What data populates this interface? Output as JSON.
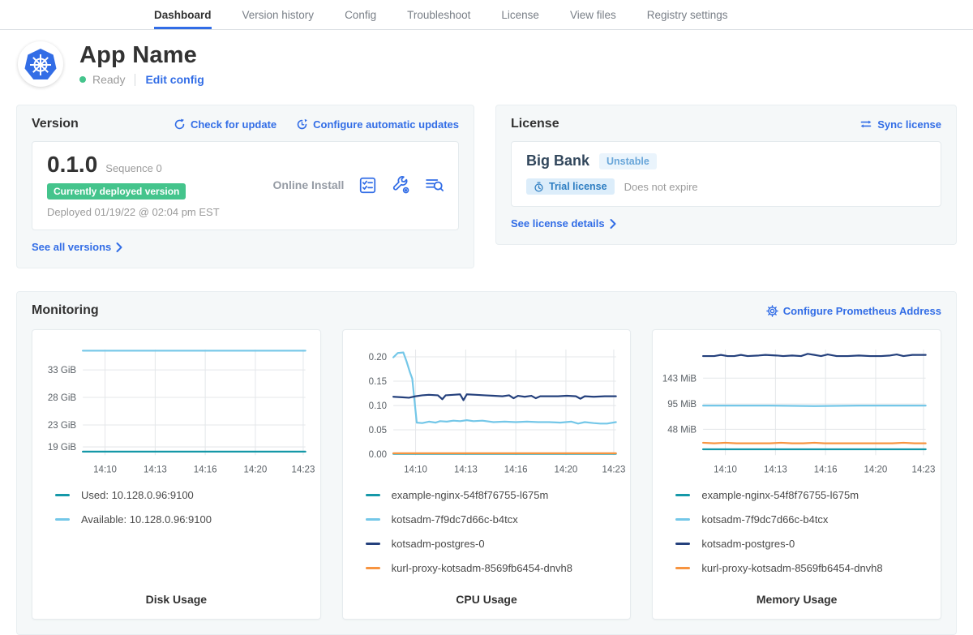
{
  "nav": {
    "tabs": [
      {
        "label": "Dashboard",
        "active": true
      },
      {
        "label": "Version history",
        "active": false
      },
      {
        "label": "Config",
        "active": false
      },
      {
        "label": "Troubleshoot",
        "active": false
      },
      {
        "label": "License",
        "active": false
      },
      {
        "label": "View files",
        "active": false
      },
      {
        "label": "Registry settings",
        "active": false
      }
    ]
  },
  "header": {
    "app_name": "App Name",
    "status": "Ready",
    "edit_config": "Edit config"
  },
  "version": {
    "title": "Version",
    "check_for_update": "Check for update",
    "configure_auto_updates": "Configure automatic updates",
    "number": "0.1.0",
    "sequence": "Sequence 0",
    "deployed_badge": "Currently deployed version",
    "deployed_text": "Deployed 01/19/22 @ 02:04 pm EST",
    "install_type": "Online Install",
    "see_all": "See all versions"
  },
  "license": {
    "title": "License",
    "sync": "Sync license",
    "name": "Big Bank",
    "channel": "Unstable",
    "type_badge": "Trial license",
    "expiry": "Does not expire",
    "details": "See license details"
  },
  "monitoring": {
    "title": "Monitoring",
    "configure": "Configure Prometheus Address"
  },
  "icons": {
    "version_actions": [
      "preflight-checks-icon",
      "config-wrench-icon",
      "view-logs-icon"
    ],
    "header_links": [
      "refresh-icon",
      "clock-arrow-icon",
      "sync-arrows-icon",
      "gear-icon"
    ]
  },
  "colors": {
    "accent_blue": "#326de6",
    "green": "#44c48c",
    "teal": "#1598a8",
    "light_blue": "#74c7e8",
    "navy": "#24407c",
    "orange": "#f79440"
  },
  "chart_data": [
    {
      "type": "line",
      "title": "Disk Usage",
      "xlabel": "",
      "ylabel": "",
      "ylim": [
        17.5,
        36.7
      ],
      "grid": true,
      "legend_position": "below",
      "y_ticks": [
        {
          "value": 33,
          "label": "33 GiB"
        },
        {
          "value": 28,
          "label": "28 GiB"
        },
        {
          "value": 23,
          "label": "23 GiB"
        },
        {
          "value": 19,
          "label": "19 GiB"
        }
      ],
      "x_ticks": [
        {
          "pos": 0.1,
          "label": "14:10"
        },
        {
          "pos": 0.325,
          "label": "14:13"
        },
        {
          "pos": 0.55,
          "label": "14:16"
        },
        {
          "pos": 0.775,
          "label": "14:20"
        },
        {
          "pos": 0.99,
          "label": "14:23"
        }
      ],
      "series": [
        {
          "name": "Used: 10.128.0.96:9100",
          "color": "#1598a8",
          "points": [
            [
              0,
              18.15
            ],
            [
              1,
              18.15
            ]
          ]
        },
        {
          "name": "Available: 10.128.0.96:9100",
          "color": "#74c7e8",
          "points": [
            [
              0,
              36.5
            ],
            [
              1,
              36.5
            ]
          ]
        }
      ]
    },
    {
      "type": "line",
      "title": "CPU Usage",
      "xlabel": "",
      "ylabel": "",
      "ylim": [
        -0.002,
        0.215
      ],
      "grid": true,
      "legend_position": "below",
      "y_ticks": [
        {
          "value": 0.2,
          "label": "0.20"
        },
        {
          "value": 0.15,
          "label": "0.15"
        },
        {
          "value": 0.1,
          "label": "0.10"
        },
        {
          "value": 0.05,
          "label": "0.05"
        },
        {
          "value": 0.0,
          "label": "0.00"
        }
      ],
      "x_ticks": [
        {
          "pos": 0.1,
          "label": "14:10"
        },
        {
          "pos": 0.325,
          "label": "14:13"
        },
        {
          "pos": 0.55,
          "label": "14:16"
        },
        {
          "pos": 0.775,
          "label": "14:20"
        },
        {
          "pos": 0.99,
          "label": "14:23"
        }
      ],
      "series": [
        {
          "name": "example-nginx-54f8f76755-l675m",
          "color": "#1598a8",
          "points": [
            [
              0,
              0.001
            ],
            [
              1,
              0.001
            ]
          ]
        },
        {
          "name": "kotsadm-7f9dc7d66c-b4tcx",
          "color": "#74c7e8",
          "points": [
            [
              0,
              0.199
            ],
            [
              0.02,
              0.208
            ],
            [
              0.045,
              0.209
            ],
            [
              0.06,
              0.19
            ],
            [
              0.075,
              0.168
            ],
            [
              0.085,
              0.155
            ],
            [
              0.105,
              0.065
            ],
            [
              0.13,
              0.064
            ],
            [
              0.16,
              0.067
            ],
            [
              0.19,
              0.065
            ],
            [
              0.21,
              0.068
            ],
            [
              0.24,
              0.067
            ],
            [
              0.27,
              0.069
            ],
            [
              0.3,
              0.068
            ],
            [
              0.33,
              0.07
            ],
            [
              0.36,
              0.068
            ],
            [
              0.4,
              0.069
            ],
            [
              0.45,
              0.066
            ],
            [
              0.5,
              0.067
            ],
            [
              0.55,
              0.066
            ],
            [
              0.6,
              0.067
            ],
            [
              0.65,
              0.066
            ],
            [
              0.7,
              0.066
            ],
            [
              0.75,
              0.065
            ],
            [
              0.8,
              0.067
            ],
            [
              0.83,
              0.063
            ],
            [
              0.86,
              0.066
            ],
            [
              0.9,
              0.064
            ],
            [
              0.93,
              0.063
            ],
            [
              0.96,
              0.063
            ],
            [
              1,
              0.066
            ]
          ]
        },
        {
          "name": "kotsadm-postgres-0",
          "color": "#24407c",
          "points": [
            [
              0,
              0.118
            ],
            [
              0.04,
              0.117
            ],
            [
              0.07,
              0.116
            ],
            [
              0.1,
              0.119
            ],
            [
              0.13,
              0.121
            ],
            [
              0.16,
              0.122
            ],
            [
              0.2,
              0.121
            ],
            [
              0.22,
              0.113
            ],
            [
              0.235,
              0.121
            ],
            [
              0.27,
              0.122
            ],
            [
              0.3,
              0.123
            ],
            [
              0.315,
              0.111
            ],
            [
              0.33,
              0.123
            ],
            [
              0.37,
              0.122
            ],
            [
              0.41,
              0.121
            ],
            [
              0.45,
              0.12
            ],
            [
              0.49,
              0.119
            ],
            [
              0.52,
              0.121
            ],
            [
              0.54,
              0.115
            ],
            [
              0.56,
              0.12
            ],
            [
              0.59,
              0.118
            ],
            [
              0.62,
              0.12
            ],
            [
              0.64,
              0.115
            ],
            [
              0.66,
              0.119
            ],
            [
              0.7,
              0.119
            ],
            [
              0.74,
              0.119
            ],
            [
              0.78,
              0.12
            ],
            [
              0.82,
              0.119
            ],
            [
              0.84,
              0.114
            ],
            [
              0.86,
              0.119
            ],
            [
              0.9,
              0.118
            ],
            [
              0.95,
              0.119
            ],
            [
              1,
              0.119
            ]
          ]
        },
        {
          "name": "kurl-proxy-kotsadm-8569fb6454-dnvh8",
          "color": "#f79440",
          "points": [
            [
              0,
              0.002
            ],
            [
              1,
              0.002
            ]
          ]
        }
      ]
    },
    {
      "type": "line",
      "title": "Memory Usage",
      "xlabel": "",
      "ylabel": "",
      "ylim": [
        0,
        196
      ],
      "grid": true,
      "legend_position": "below",
      "y_ticks": [
        {
          "value": 143,
          "label": "143 MiB"
        },
        {
          "value": 95,
          "label": "95 MiB"
        },
        {
          "value": 48,
          "label": "48 MiB"
        }
      ],
      "x_ticks": [
        {
          "pos": 0.1,
          "label": "14:10"
        },
        {
          "pos": 0.325,
          "label": "14:13"
        },
        {
          "pos": 0.55,
          "label": "14:16"
        },
        {
          "pos": 0.775,
          "label": "14:20"
        },
        {
          "pos": 0.99,
          "label": "14:23"
        }
      ],
      "series": [
        {
          "name": "example-nginx-54f8f76755-l675m",
          "color": "#1598a8",
          "points": [
            [
              0,
              11
            ],
            [
              1,
              11
            ]
          ]
        },
        {
          "name": "kotsadm-7f9dc7d66c-b4tcx",
          "color": "#74c7e8",
          "points": [
            [
              0,
              92
            ],
            [
              0.3,
              92
            ],
            [
              0.5,
              91
            ],
            [
              0.7,
              92
            ],
            [
              1,
              92
            ]
          ]
        },
        {
          "name": "kotsadm-postgres-0",
          "color": "#24407c",
          "points": [
            [
              0,
              184
            ],
            [
              0.05,
              184
            ],
            [
              0.08,
              186
            ],
            [
              0.11,
              184
            ],
            [
              0.14,
              184
            ],
            [
              0.17,
              186
            ],
            [
              0.2,
              184
            ],
            [
              0.25,
              185
            ],
            [
              0.28,
              186
            ],
            [
              0.33,
              185
            ],
            [
              0.36,
              184
            ],
            [
              0.4,
              185
            ],
            [
              0.44,
              184
            ],
            [
              0.47,
              188
            ],
            [
              0.5,
              186
            ],
            [
              0.53,
              184
            ],
            [
              0.56,
              187
            ],
            [
              0.6,
              184
            ],
            [
              0.65,
              184
            ],
            [
              0.7,
              185
            ],
            [
              0.75,
              184
            ],
            [
              0.8,
              184
            ],
            [
              0.84,
              185
            ],
            [
              0.87,
              187
            ],
            [
              0.9,
              184
            ],
            [
              0.94,
              186
            ],
            [
              1,
              186
            ]
          ]
        },
        {
          "name": "kurl-proxy-kotsadm-8569fb6454-dnvh8",
          "color": "#f79440",
          "points": [
            [
              0,
              23
            ],
            [
              0.05,
              22
            ],
            [
              0.1,
              23
            ],
            [
              0.15,
              22
            ],
            [
              0.2,
              22
            ],
            [
              0.25,
              22
            ],
            [
              0.3,
              22
            ],
            [
              0.35,
              23
            ],
            [
              0.4,
              22
            ],
            [
              0.45,
              22
            ],
            [
              0.5,
              23
            ],
            [
              0.55,
              22
            ],
            [
              0.6,
              22
            ],
            [
              0.65,
              22
            ],
            [
              0.7,
              22
            ],
            [
              0.75,
              22
            ],
            [
              0.8,
              22
            ],
            [
              0.85,
              22
            ],
            [
              0.9,
              23
            ],
            [
              0.95,
              22
            ],
            [
              1,
              22
            ]
          ]
        }
      ]
    }
  ]
}
